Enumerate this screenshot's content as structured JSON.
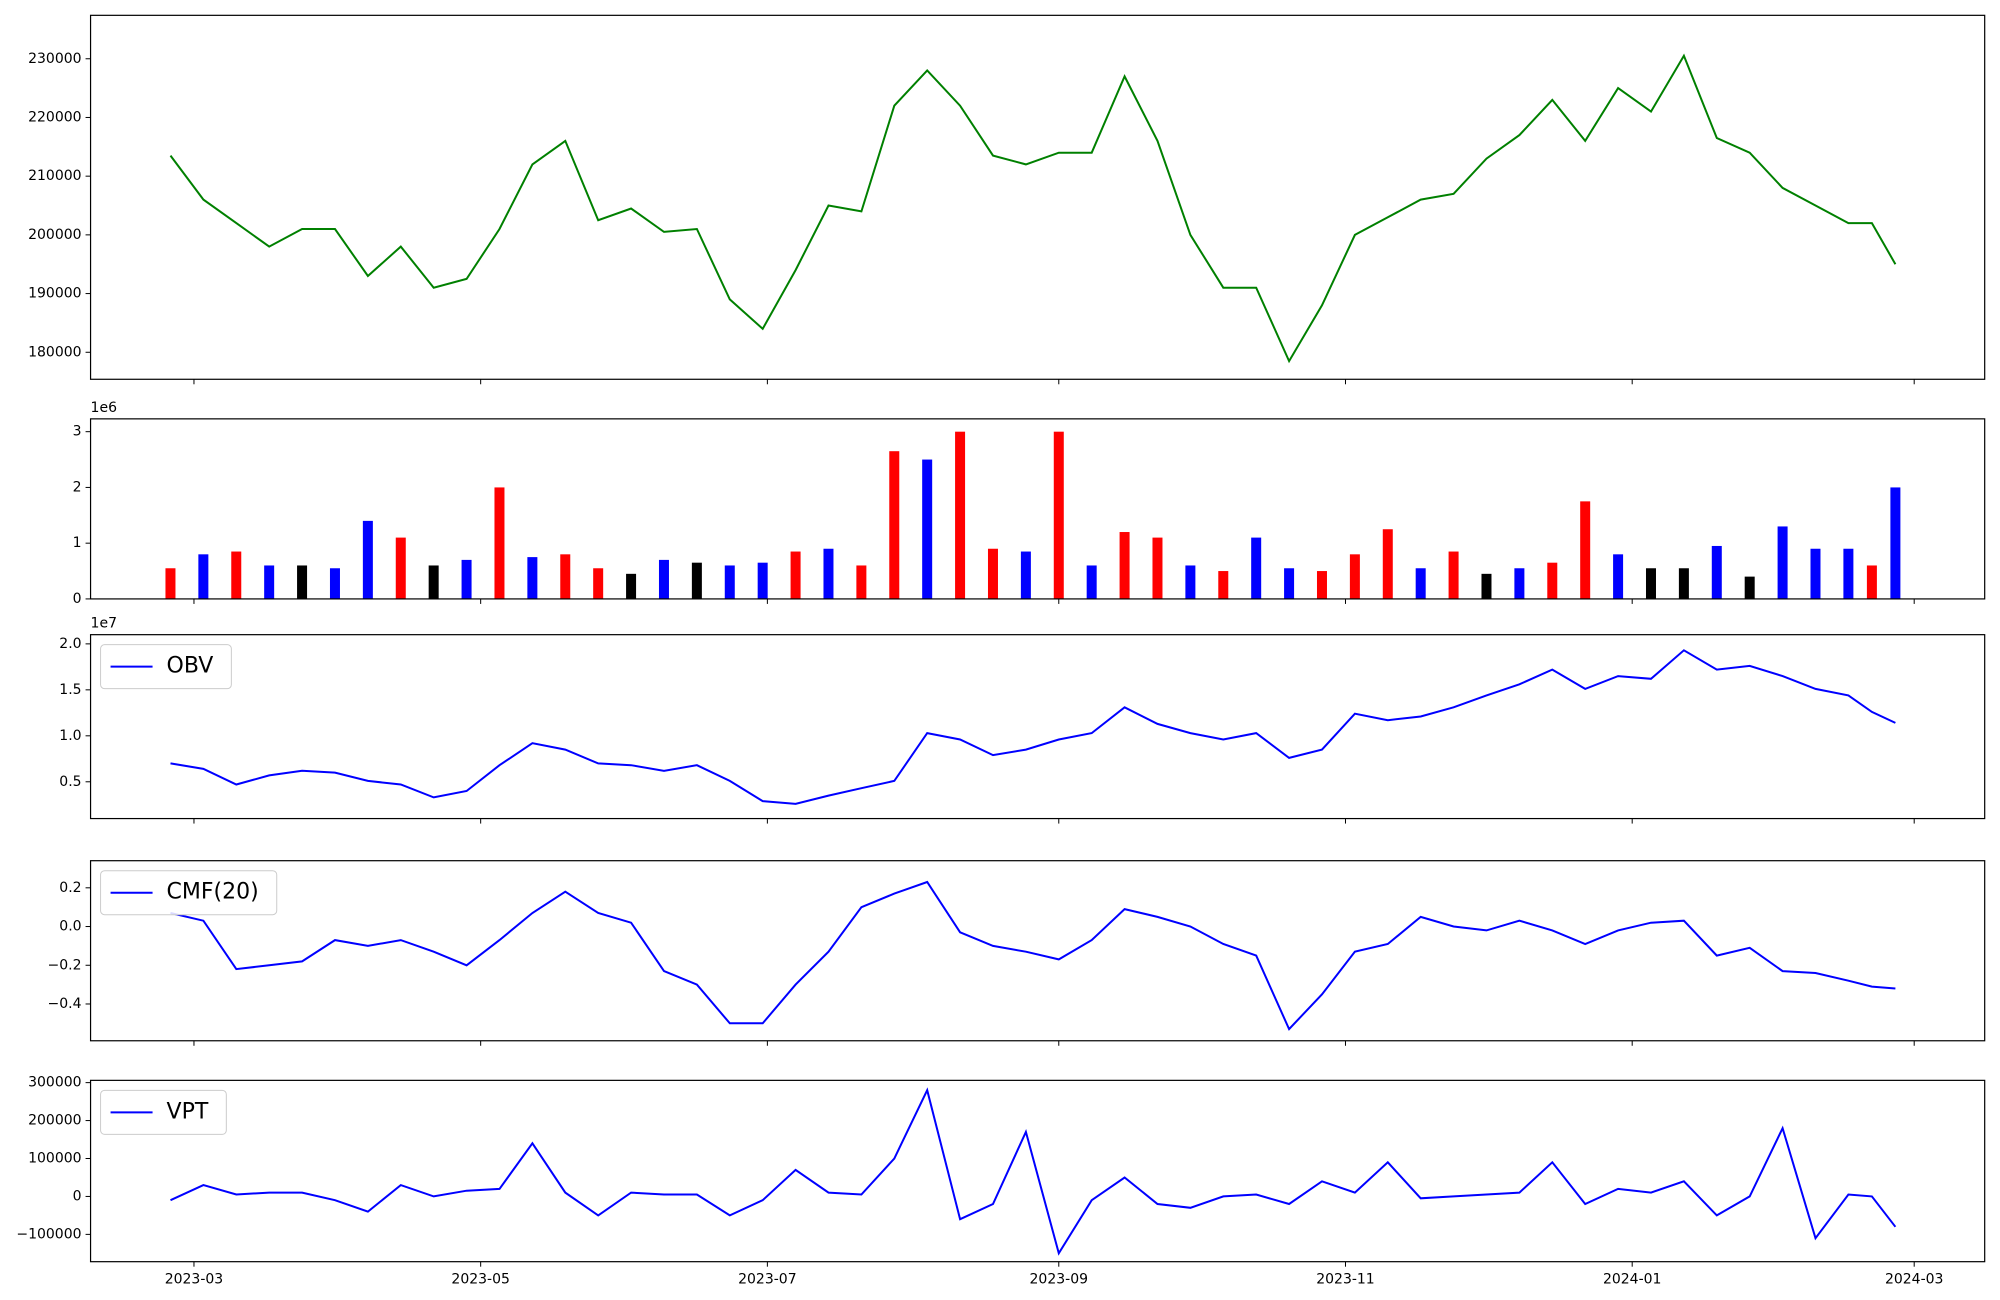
{
  "x": [
    "2023-02-24",
    "2023-03-03",
    "2023-03-10",
    "2023-03-17",
    "2023-03-24",
    "2023-03-31",
    "2023-04-07",
    "2023-04-14",
    "2023-04-21",
    "2023-04-28",
    "2023-05-05",
    "2023-05-12",
    "2023-05-19",
    "2023-05-26",
    "2023-06-02",
    "2023-06-09",
    "2023-06-16",
    "2023-06-23",
    "2023-06-30",
    "2023-07-07",
    "2023-07-14",
    "2023-07-21",
    "2023-07-28",
    "2023-08-04",
    "2023-08-11",
    "2023-08-18",
    "2023-08-25",
    "2023-09-01",
    "2023-09-08",
    "2023-09-15",
    "2023-09-22",
    "2023-09-29",
    "2023-10-06",
    "2023-10-13",
    "2023-10-20",
    "2023-10-27",
    "2023-11-03",
    "2023-11-10",
    "2023-11-17",
    "2023-11-24",
    "2023-12-01",
    "2023-12-08",
    "2023-12-15",
    "2023-12-22",
    "2023-12-29",
    "2024-01-05",
    "2024-01-12",
    "2024-01-19",
    "2024-01-26",
    "2024-02-02",
    "2024-02-09",
    "2024-02-16",
    "2024-02-21",
    "2024-02-26"
  ],
  "xlim": [
    "2023-02-07",
    "2024-03-16"
  ],
  "xticks": [
    {
      "value": "2023-03-01",
      "label": "2023-03"
    },
    {
      "value": "2023-05-01",
      "label": "2023-05"
    },
    {
      "value": "2023-07-01",
      "label": "2023-07"
    },
    {
      "value": "2023-09-01",
      "label": "2023-09"
    },
    {
      "value": "2023-11-01",
      "label": "2023-11"
    },
    {
      "value": "2024-01-01",
      "label": "2024-01"
    },
    {
      "value": "2024-03-01",
      "label": "2024-03"
    }
  ],
  "chart_data": [
    {
      "type": "line",
      "ylim": [
        175400,
        237400
      ],
      "yticks": [
        180000,
        190000,
        200000,
        210000,
        220000,
        230000
      ],
      "series": [
        {
          "color": "green",
          "values": [
            213500,
            206000,
            202000,
            198000,
            201000,
            201000,
            193000,
            198000,
            191000,
            192500,
            201000,
            212000,
            216000,
            202500,
            204500,
            200500,
            201000,
            189000,
            184000,
            194000,
            205000,
            204000,
            222000,
            228000,
            222000,
            213500,
            212000,
            214000,
            214000,
            227000,
            216000,
            200000,
            191000,
            191000,
            178500,
            188000,
            200000,
            203000,
            206000,
            207000,
            213000,
            217000,
            223000,
            216000,
            225000,
            221000,
            230500,
            216500,
            214000,
            208000,
            205000,
            202000,
            202000,
            195000
          ]
        }
      ]
    },
    {
      "type": "bar",
      "offset_text": "1e6",
      "ylim": [
        0,
        3230000
      ],
      "yticks": [
        0,
        {
          "value": 1000000,
          "label": "1"
        },
        {
          "value": 2000000,
          "label": "2"
        },
        {
          "value": 3000000,
          "label": "3"
        }
      ],
      "values": [
        550000,
        800000,
        850000,
        600000,
        600000,
        550000,
        1400000,
        1100000,
        600000,
        700000,
        2000000,
        750000,
        800000,
        550000,
        450000,
        700000,
        650000,
        600000,
        650000,
        850000,
        900000,
        600000,
        2650000,
        2500000,
        3000000,
        900000,
        850000,
        3000000,
        600000,
        1200000,
        1100000,
        600000,
        500000,
        1100000,
        550000,
        500000,
        800000,
        1250000,
        550000,
        850000,
        450000,
        550000,
        650000,
        1750000,
        800000,
        550000,
        550000,
        950000,
        400000,
        1300000,
        900000,
        900000,
        600000,
        2000000
      ],
      "colors": [
        "red",
        "blue",
        "red",
        "blue",
        "black",
        "blue",
        "blue",
        "red",
        "black",
        "blue",
        "red",
        "blue",
        "red",
        "red",
        "black",
        "blue",
        "black",
        "blue",
        "blue",
        "red",
        "blue",
        "red",
        "red",
        "blue",
        "red",
        "red",
        "blue",
        "red",
        "blue",
        "red",
        "red",
        "blue",
        "red",
        "blue",
        "blue",
        "red",
        "red",
        "red",
        "blue",
        "red",
        "black",
        "blue",
        "red",
        "red",
        "blue",
        "black",
        "black",
        "blue",
        "black",
        "blue",
        "blue",
        "blue",
        "red",
        "blue"
      ]
    },
    {
      "type": "line",
      "offset_text": "1e7",
      "ylim": [
        1000000,
        21000000
      ],
      "legend": "upper left",
      "yticks": [
        {
          "value": 5000000,
          "label": "0.5"
        },
        {
          "value": 10000000,
          "label": "1.0"
        },
        {
          "value": 15000000,
          "label": "1.5"
        },
        {
          "value": 20000000,
          "label": "2.0"
        }
      ],
      "series": [
        {
          "name": "OBV",
          "color": "blue",
          "values": [
            7000000,
            6400000,
            4700000,
            5700000,
            6200000,
            6000000,
            5100000,
            4700000,
            3300000,
            4000000,
            6800000,
            9200000,
            8500000,
            7000000,
            6800000,
            6200000,
            6800000,
            5100000,
            2900000,
            2600000,
            3500000,
            4300000,
            5100000,
            10300000,
            9600000,
            7900000,
            8500000,
            9600000,
            10300000,
            13100000,
            11300000,
            10300000,
            9600000,
            10300000,
            7600000,
            8500000,
            12400000,
            11700000,
            12100000,
            13100000,
            14400000,
            15600000,
            17200000,
            15100000,
            16500000,
            16200000,
            19300000,
            17200000,
            17600000,
            16500000,
            15100000,
            14400000,
            12600000,
            11400000
          ]
        }
      ]
    },
    {
      "type": "line",
      "ylim": [
        -0.59,
        0.34
      ],
      "legend": "upper left",
      "yticks": [
        {
          "value": -0.4,
          "label": "−0.4"
        },
        {
          "value": -0.2,
          "label": "−0.2"
        },
        {
          "value": 0,
          "label": "0.0"
        },
        0.2
      ],
      "series": [
        {
          "name": "CMF(20)",
          "color": "blue",
          "values": [
            0.07,
            0.03,
            -0.22,
            -0.2,
            -0.18,
            -0.07,
            -0.1,
            -0.07,
            -0.13,
            -0.2,
            -0.07,
            0.07,
            0.18,
            0.07,
            0.02,
            -0.23,
            -0.3,
            -0.5,
            -0.5,
            -0.3,
            -0.13,
            0.1,
            0.17,
            0.23,
            -0.03,
            -0.1,
            -0.13,
            -0.17,
            -0.07,
            0.09,
            0.05,
            0,
            -0.09,
            -0.15,
            -0.53,
            -0.35,
            -0.13,
            -0.09,
            0.05,
            0,
            -0.02,
            0.03,
            -0.02,
            -0.09,
            -0.02,
            0.02,
            0.03,
            -0.15,
            -0.11,
            -0.23,
            -0.24,
            -0.28,
            -0.31,
            -0.32
          ]
        }
      ]
    },
    {
      "type": "line",
      "ylim": [
        -172000,
        306000
      ],
      "legend": "upper left",
      "yticks": [
        {
          "value": -100000,
          "label": "−100000"
        },
        0,
        100000,
        200000,
        300000
      ],
      "series": [
        {
          "name": "VPT",
          "color": "blue",
          "values": [
            -10000,
            30000,
            5000,
            10000,
            10000,
            -10000,
            -40000,
            30000,
            0,
            15000,
            20000,
            140000,
            10000,
            -50000,
            10000,
            5000,
            5000,
            -50000,
            -10000,
            70000,
            10000,
            5000,
            100000,
            280000,
            -60000,
            -20000,
            170000,
            -150000,
            -10000,
            50000,
            -20000,
            -30000,
            0,
            5000,
            -20000,
            40000,
            10000,
            90000,
            -5000,
            0,
            5000,
            10000,
            90000,
            -20000,
            20000,
            10000,
            40000,
            -50000,
            0,
            180000,
            -110000,
            5000,
            0,
            -80000
          ]
        }
      ]
    }
  ]
}
